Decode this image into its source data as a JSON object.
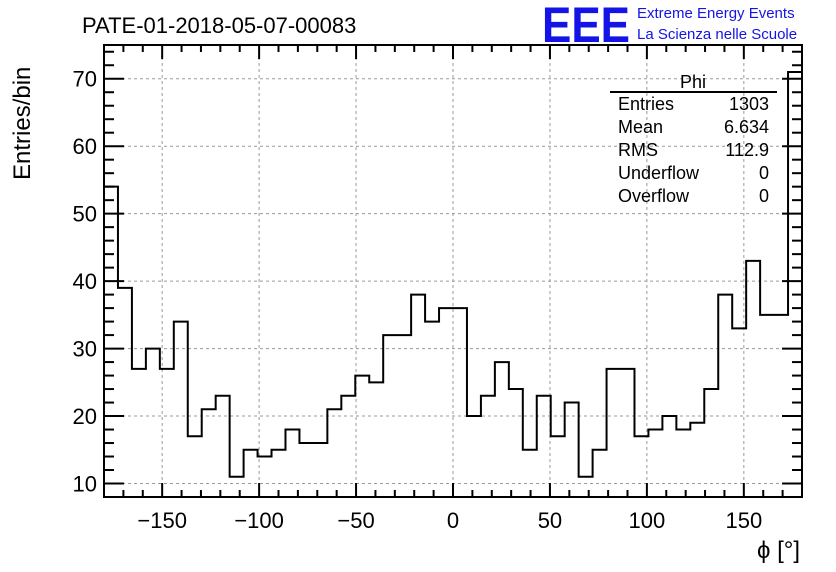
{
  "header": {
    "title": "PATE-01-2018-05-07-00083",
    "logo_text": "EEE",
    "logo_line1": "Extreme Energy Events",
    "logo_line2": "La Scienza nelle Scuole"
  },
  "stats": {
    "title": "Phi",
    "rows": [
      {
        "label": "Entries",
        "value": "1303"
      },
      {
        "label": "Mean",
        "value": "6.634"
      },
      {
        "label": "RMS",
        "value": "112.9"
      },
      {
        "label": "Underflow",
        "value": "0"
      },
      {
        "label": "Overflow",
        "value": "0"
      }
    ]
  },
  "chart_data": {
    "type": "histogram",
    "title": "PATE-01-2018-05-07-00083",
    "xlabel": "ϕ [°]",
    "ylabel": "Entries/bin",
    "xlim": [
      -180,
      180
    ],
    "ylim": [
      8,
      75
    ],
    "bin_edges_start": -180,
    "bin_width": 7.2,
    "values": [
      54,
      39,
      27,
      30,
      27,
      34,
      17,
      21,
      23,
      11,
      15,
      14,
      15,
      18,
      16,
      16,
      21,
      23,
      26,
      25,
      32,
      32,
      38,
      34,
      36,
      36,
      20,
      23,
      28,
      24,
      15,
      23,
      17,
      22,
      11,
      15,
      27,
      27,
      17,
      18,
      20,
      18,
      19,
      24,
      38,
      33,
      43,
      35,
      35,
      71
    ],
    "x_ticks": [
      -150,
      -100,
      -50,
      0,
      50,
      100,
      150
    ],
    "x_tick_labels": [
      "−150",
      "−100",
      "−50",
      "0",
      "50",
      "100",
      "150"
    ],
    "y_ticks": [
      10,
      20,
      30,
      40,
      50,
      60,
      70
    ],
    "y_tick_labels": [
      "10",
      "20",
      "30",
      "40",
      "50",
      "60",
      "70"
    ],
    "grid": true,
    "legend": "top-right stats box"
  }
}
